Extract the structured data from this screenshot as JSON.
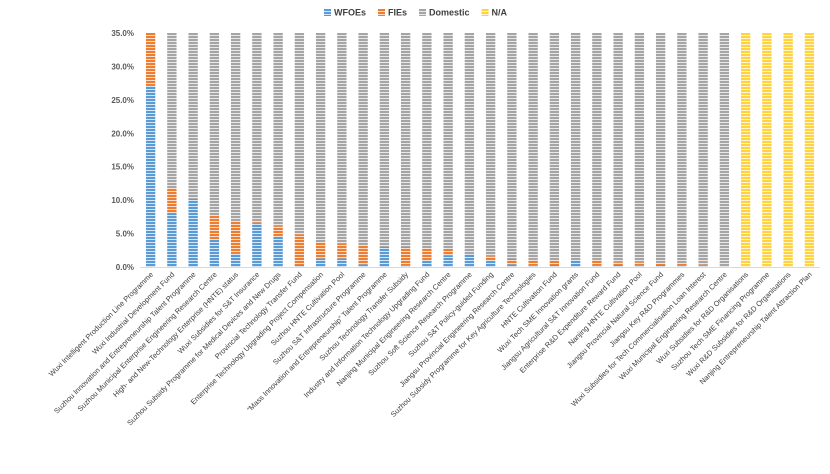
{
  "chart_data": {
    "type": "bar",
    "stacked": true,
    "categories": [
      "Wuxi Intelligent Production Line Programme",
      "Wuxi Industrial Development Fund",
      "Suzhou Innovation and Entrepreneurship Talent Programme",
      "Suzhou Municipal Enterprise Engineering Research Centre",
      "High- and New-Technology Enterprise (HNTE) status",
      "Wuxi Subsidies for S&T Insurance",
      "Suzhou Subsidy Programme for Medical Devices and New Drugs",
      "Provincial Technology Transfer Fund",
      "Enterprise Technology Upgrading Project Compensation",
      "Suzhou HNTE Cultivation Pool",
      "Suzhou S&T Infrastructure Programme",
      "“Mass Innovation and Entrepreneurship” Talent Programme",
      "Suzhou Technology Transfer Subsidy",
      "Industry and Information Technology Upgrading Fund",
      "Nanjing Municipal Engineering Research Centre",
      "Suzhou Soft Science Research Programme",
      "Suzhou S&T Policy-guided Funding",
      "Jiangsu Provincial Engineering Research Centre",
      "Suzhou Subsidy Programme for Key Agriculture Technologies",
      "HNTE Cultivation Fund",
      "Wuxi Tech SME Innovation grants",
      "Jiangsu Agricultural S&T Innovation Fund",
      "Enterprise R&D Expenditure Reward Fund",
      "Nanjing HNTE Cultivation Pool",
      "Jiangsu Provincial Natural Science Fund",
      "Jiangsu Key R&D Programmes",
      "Wuxi Subsidies for Tech Commercialisation Loan Interest",
      "Wuxi Municipal Engineering Research Centre",
      "Wuxi Subsidies for R&D Organisations",
      "Suzhou Tech SME Financing Programme",
      "Wuxi R&D Subsidies for R&D Organisations",
      "Nanjing Entrepreneurship Talent Attraction Plan"
    ],
    "series": [
      {
        "name": "WFOEs",
        "color": "#5B9BD5",
        "values": [
          27.2,
          8.0,
          10.2,
          4.1,
          2.0,
          6.5,
          4.5,
          0.3,
          1.3,
          1.3,
          0.4,
          3.0,
          0.2,
          1.0,
          1.7,
          2.0,
          1.0,
          0.4,
          0.2,
          0.3,
          1.0,
          0.2,
          0.3,
          0.2,
          0.3,
          0.2,
          0.2,
          0.0,
          0.0,
          0.0,
          0.0,
          0.0
        ]
      },
      {
        "name": "FIEs",
        "color": "#ED7D31",
        "values": [
          7.8,
          3.8,
          0.0,
          3.6,
          4.8,
          0.2,
          1.6,
          4.6,
          2.4,
          2.2,
          2.8,
          0.0,
          2.8,
          1.8,
          1.0,
          0.0,
          0.6,
          0.8,
          0.9,
          0.7,
          0.0,
          0.9,
          0.4,
          0.5,
          0.2,
          0.4,
          0.2,
          0.0,
          0.0,
          0.0,
          0.0,
          0.0
        ]
      },
      {
        "name": "Domestic",
        "color": "#A5A5A5",
        "values": [
          0.0,
          23.2,
          24.8,
          27.3,
          28.2,
          28.3,
          28.9,
          30.1,
          31.3,
          31.5,
          31.8,
          32.0,
          32.0,
          32.2,
          32.3,
          33.0,
          33.4,
          33.8,
          33.9,
          34.0,
          34.0,
          33.9,
          34.3,
          34.3,
          34.5,
          34.4,
          34.6,
          35.0,
          0.0,
          0.0,
          0.0,
          0.0
        ]
      },
      {
        "name": "N/A",
        "color": "#FFD23F",
        "values": [
          0.0,
          0.0,
          0.0,
          0.0,
          0.0,
          0.0,
          0.0,
          0.0,
          0.0,
          0.0,
          0.0,
          0.0,
          0.0,
          0.0,
          0.0,
          0.0,
          0.0,
          0.0,
          0.0,
          0.0,
          0.0,
          0.0,
          0.0,
          0.0,
          0.0,
          0.0,
          0.0,
          0.0,
          35.0,
          35.0,
          35.0,
          35.0
        ]
      }
    ],
    "yticks": [
      "0.0%",
      "5.0%",
      "10.0%",
      "15.0%",
      "20.0%",
      "25.0%",
      "30.0%",
      "35.0%"
    ],
    "ylim": [
      0,
      35
    ],
    "title": "",
    "xlabel": "",
    "ylabel": "",
    "grid": false,
    "legend_position": "top-center"
  }
}
